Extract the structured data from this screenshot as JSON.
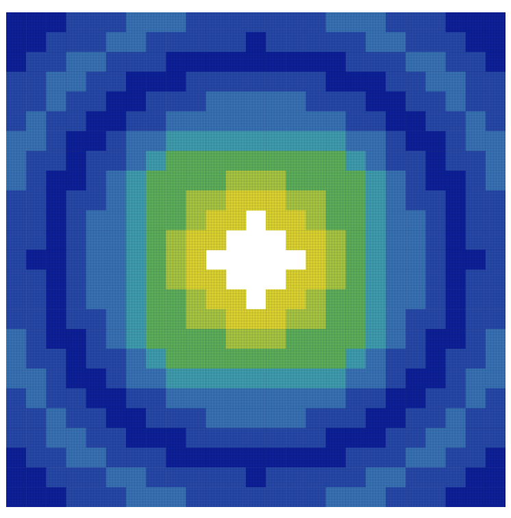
{
  "chart_data": {
    "type": "heatmap",
    "tick_labels": false,
    "colors": [
      "#0c1f96",
      "#2547a6",
      "#3670b0",
      "#3c9aaa",
      "#5aac55",
      "#a4c23c",
      "#d8cf2a"
    ],
    "cells": [
      [
        0,
        0,
        0,
        1,
        1,
        1,
        2,
        2,
        2,
        1,
        1,
        1,
        1,
        1,
        1,
        1,
        2,
        2,
        2,
        1,
        1,
        1,
        0,
        0,
        0
      ],
      [
        0,
        0,
        1,
        1,
        1,
        2,
        2,
        1,
        1,
        1,
        1,
        1,
        0,
        1,
        1,
        1,
        1,
        1,
        2,
        2,
        1,
        1,
        1,
        0,
        0
      ],
      [
        0,
        1,
        1,
        2,
        2,
        1,
        1,
        1,
        0,
        0,
        0,
        0,
        0,
        0,
        0,
        0,
        0,
        1,
        1,
        1,
        2,
        2,
        1,
        1,
        0
      ],
      [
        1,
        1,
        2,
        2,
        1,
        1,
        0,
        0,
        0,
        1,
        1,
        1,
        1,
        1,
        1,
        1,
        0,
        0,
        0,
        1,
        1,
        2,
        2,
        1,
        1
      ],
      [
        1,
        1,
        2,
        1,
        1,
        0,
        0,
        1,
        1,
        1,
        2,
        2,
        2,
        2,
        2,
        1,
        1,
        1,
        0,
        0,
        1,
        1,
        2,
        1,
        1
      ],
      [
        1,
        2,
        1,
        1,
        0,
        0,
        1,
        1,
        2,
        2,
        2,
        2,
        2,
        2,
        2,
        2,
        2,
        1,
        1,
        0,
        0,
        1,
        1,
        2,
        1
      ],
      [
        2,
        2,
        1,
        0,
        0,
        1,
        2,
        2,
        3,
        3,
        3,
        3,
        3,
        3,
        3,
        3,
        3,
        2,
        2,
        1,
        0,
        0,
        1,
        2,
        2
      ],
      [
        2,
        1,
        1,
        0,
        1,
        1,
        2,
        3,
        4,
        4,
        4,
        4,
        4,
        4,
        4,
        4,
        4,
        3,
        2,
        1,
        1,
        0,
        1,
        1,
        2
      ],
      [
        2,
        1,
        0,
        0,
        1,
        2,
        3,
        4,
        4,
        4,
        4,
        5,
        5,
        5,
        4,
        4,
        4,
        4,
        3,
        2,
        1,
        0,
        0,
        1,
        2
      ],
      [
        1,
        1,
        0,
        1,
        1,
        2,
        3,
        4,
        4,
        5,
        5,
        6,
        6,
        6,
        5,
        5,
        4,
        4,
        3,
        2,
        1,
        1,
        0,
        1,
        1
      ],
      [
        1,
        1,
        0,
        1,
        2,
        2,
        3,
        4,
        4,
        5,
        6,
        6,
        null,
        6,
        6,
        5,
        4,
        4,
        3,
        2,
        2,
        1,
        0,
        1,
        1
      ],
      [
        1,
        1,
        0,
        1,
        2,
        2,
        3,
        4,
        5,
        6,
        6,
        null,
        null,
        null,
        6,
        6,
        5,
        4,
        3,
        2,
        2,
        1,
        0,
        1,
        1
      ],
      [
        1,
        0,
        0,
        1,
        2,
        2,
        3,
        4,
        5,
        6,
        null,
        null,
        null,
        null,
        null,
        6,
        5,
        4,
        3,
        2,
        2,
        1,
        0,
        0,
        1
      ],
      [
        1,
        1,
        0,
        1,
        2,
        2,
        3,
        4,
        5,
        6,
        6,
        null,
        null,
        null,
        6,
        6,
        5,
        4,
        3,
        2,
        2,
        1,
        0,
        1,
        1
      ],
      [
        1,
        1,
        0,
        1,
        2,
        2,
        3,
        4,
        4,
        5,
        6,
        6,
        null,
        6,
        6,
        5,
        4,
        4,
        3,
        2,
        2,
        1,
        0,
        1,
        1
      ],
      [
        1,
        1,
        0,
        1,
        1,
        2,
        3,
        4,
        4,
        5,
        5,
        6,
        6,
        6,
        5,
        5,
        4,
        4,
        3,
        2,
        1,
        1,
        0,
        1,
        1
      ],
      [
        2,
        1,
        0,
        0,
        1,
        2,
        3,
        4,
        4,
        4,
        4,
        5,
        5,
        5,
        4,
        4,
        4,
        4,
        3,
        2,
        1,
        0,
        0,
        1,
        2
      ],
      [
        2,
        1,
        1,
        0,
        1,
        1,
        2,
        3,
        4,
        4,
        4,
        4,
        4,
        4,
        4,
        4,
        4,
        3,
        2,
        1,
        1,
        0,
        1,
        1,
        2
      ],
      [
        2,
        2,
        1,
        0,
        0,
        1,
        2,
        2,
        3,
        3,
        3,
        3,
        3,
        3,
        3,
        3,
        3,
        2,
        2,
        1,
        0,
        0,
        1,
        2,
        2
      ],
      [
        1,
        2,
        1,
        1,
        0,
        0,
        1,
        1,
        2,
        2,
        2,
        2,
        2,
        2,
        2,
        2,
        2,
        1,
        1,
        0,
        0,
        1,
        1,
        2,
        1
      ],
      [
        1,
        1,
        2,
        1,
        1,
        0,
        0,
        1,
        1,
        1,
        2,
        2,
        2,
        2,
        2,
        1,
        1,
        1,
        0,
        0,
        1,
        1,
        2,
        1,
        1
      ],
      [
        1,
        1,
        2,
        2,
        1,
        1,
        0,
        0,
        0,
        1,
        1,
        1,
        1,
        1,
        1,
        1,
        0,
        0,
        0,
        1,
        1,
        2,
        2,
        1,
        1
      ],
      [
        0,
        1,
        1,
        2,
        2,
        1,
        1,
        1,
        0,
        0,
        0,
        0,
        0,
        0,
        0,
        0,
        0,
        1,
        1,
        1,
        2,
        2,
        1,
        1,
        0
      ],
      [
        0,
        0,
        1,
        1,
        1,
        2,
        2,
        1,
        1,
        1,
        1,
        1,
        0,
        1,
        1,
        1,
        1,
        1,
        2,
        2,
        1,
        1,
        1,
        0,
        0
      ],
      [
        0,
        0,
        0,
        1,
        1,
        1,
        2,
        2,
        2,
        1,
        1,
        1,
        1,
        1,
        1,
        1,
        2,
        2,
        2,
        1,
        1,
        1,
        0,
        0,
        0
      ]
    ]
  }
}
